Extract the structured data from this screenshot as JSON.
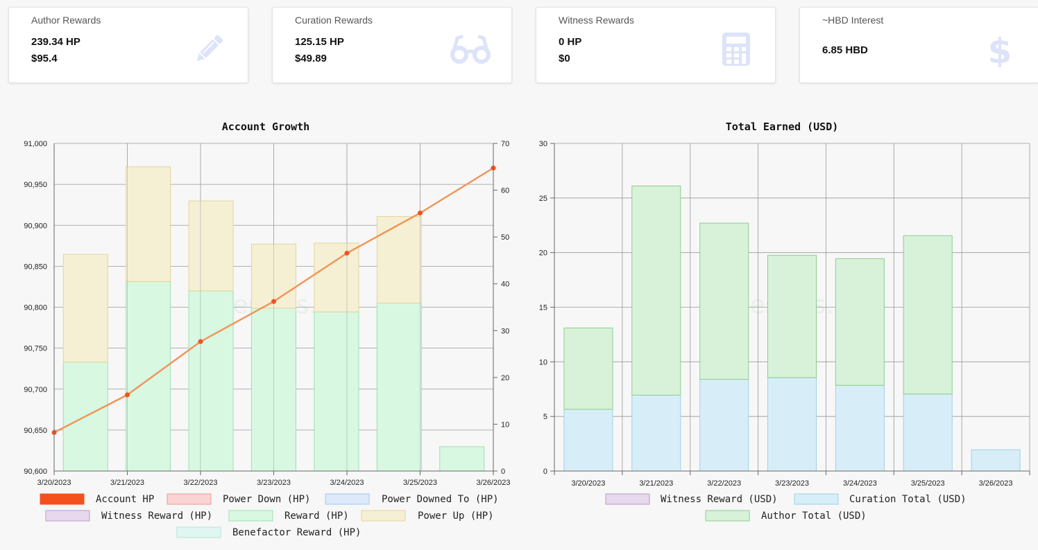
{
  "cards": [
    {
      "title": "Author Rewards",
      "line1": "239.34 HP",
      "line2": "$95.4",
      "icon": "pencil-icon"
    },
    {
      "title": "Curation Rewards",
      "line1": "125.15 HP",
      "line2": "$49.89",
      "icon": "glasses-icon"
    },
    {
      "title": "Witness Rewards",
      "line1": "0 HP",
      "line2": "$0",
      "icon": "calculator-icon"
    },
    {
      "title": "~HBD Interest",
      "line1": "6.85 HBD",
      "line2": "",
      "icon": "dollar-icon"
    }
  ],
  "watermark": "hivestats.io",
  "colors": {
    "icon": "#dde3f8",
    "account_hp": "#f4511e",
    "line": "#f0965a",
    "reward_fill": "#d8f8e2",
    "reward_stroke": "#9fdfb0",
    "powerup_fill": "#f5f0d4",
    "powerup_stroke": "#e3d49a",
    "curation_fill": "#d7eef8",
    "curation_stroke": "#9fd0e6",
    "author_fill": "#d8f2d9",
    "author_stroke": "#8ccc90"
  },
  "chart_data": [
    {
      "type": "bar",
      "title": "Account Growth",
      "categories": [
        "3/20/2023",
        "3/21/2023",
        "3/22/2023",
        "3/23/2023",
        "3/24/2023",
        "3/25/2023",
        "3/26/2023"
      ],
      "y_left": {
        "min": 90600,
        "max": 91000,
        "ticks": [
          "90,600",
          "90,650",
          "90,700",
          "90,750",
          "90,800",
          "90,850",
          "90,900",
          "90,950",
          "91,000"
        ]
      },
      "y_right": {
        "min": 0,
        "max": 70,
        "ticks": [
          "0",
          "10",
          "20",
          "30",
          "40",
          "50",
          "60",
          "70"
        ]
      },
      "series": [
        {
          "name": "Reward (HP)",
          "axis": "right",
          "values": [
            23.3,
            40.5,
            38.5,
            34.8,
            34.0,
            35.9,
            5.2
          ]
        },
        {
          "name": "Power Up (HP)",
          "axis": "right",
          "values": [
            23.0,
            24.5,
            19.2,
            13.7,
            14.7,
            18.5,
            0
          ]
        },
        {
          "name": "Account HP",
          "type": "line",
          "axis": "left",
          "values": [
            90647,
            90693,
            90758,
            90807,
            90866,
            90915,
            90970
          ]
        }
      ],
      "legend": [
        "Account HP",
        "Power Down (HP)",
        "Power Downed To (HP)",
        "Witness Reward (HP)",
        "Reward (HP)",
        "Power Up (HP)",
        "Benefactor Reward (HP)"
      ],
      "grid": true,
      "legend_position": "bottom"
    },
    {
      "type": "bar",
      "title": "Total Earned (USD)",
      "categories": [
        "3/20/2023",
        "3/21/2023",
        "3/22/2023",
        "3/23/2023",
        "3/24/2023",
        "3/25/2023",
        "3/26/2023"
      ],
      "y": {
        "min": 0,
        "max": 30,
        "ticks": [
          "0",
          "5",
          "10",
          "15",
          "20",
          "25",
          "30"
        ]
      },
      "series": [
        {
          "name": "Curation Total (USD)",
          "values": [
            5.65,
            6.95,
            8.4,
            8.55,
            7.85,
            7.05,
            1.95
          ]
        },
        {
          "name": "Author Total (USD)",
          "values": [
            7.45,
            19.15,
            14.3,
            11.2,
            11.6,
            14.5,
            0
          ]
        }
      ],
      "legend": [
        "Witness Reward (USD)",
        "Curation Total (USD)",
        "Author Total (USD)"
      ],
      "grid": true,
      "legend_position": "bottom"
    }
  ]
}
